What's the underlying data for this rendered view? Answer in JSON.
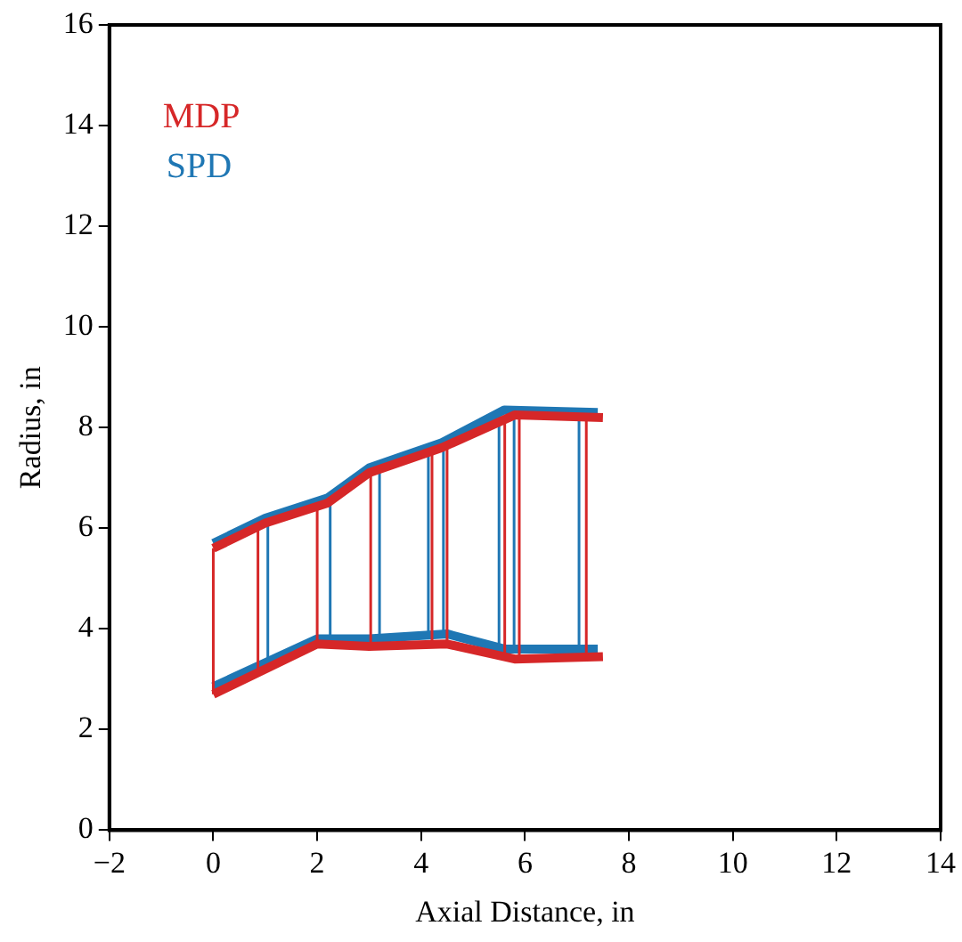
{
  "chart_data": {
    "type": "line",
    "xlabel": "Axial Distance, in",
    "ylabel": "Radius, in",
    "xlim": [
      -2,
      14
    ],
    "xticks": [
      -2,
      0,
      2,
      4,
      6,
      8,
      10,
      12,
      14
    ],
    "ylim": [
      0,
      16
    ],
    "yticks": [
      0,
      2,
      4,
      6,
      8,
      10,
      12,
      14,
      16
    ],
    "grid": false,
    "legend": "top left",
    "marker": "none",
    "line_style": "solid",
    "series": [
      {
        "name": "MDP",
        "color": "#d62728",
        "x": [
          0,
          1,
          2.2,
          3,
          4.4,
          5.8,
          7.5
        ],
        "values": [
          5.6,
          6.1,
          6.5,
          7.1,
          7.6,
          8.25,
          8.2
        ]
      },
      {
        "color": "#d62728",
        "x": [
          0,
          2,
          3,
          4.5,
          5.8,
          7.5
        ],
        "values": [
          2.7,
          3.7,
          3.65,
          3.7,
          3.4,
          3.45
        ]
      },
      {
        "color": "#d62728",
        "x": [
          0,
          0
        ],
        "values": [
          2.7,
          5.6
        ]
      },
      {
        "color": "#d62728",
        "x": [
          0.86,
          0.86
        ],
        "values": [
          3.13,
          6.03
        ]
      },
      {
        "color": "#d62728",
        "x": [
          2,
          2
        ],
        "values": [
          3.7,
          6.43
        ]
      },
      {
        "color": "#d62728",
        "x": [
          3.03,
          3.03
        ],
        "values": [
          3.65,
          7.1
        ]
      },
      {
        "color": "#d62728",
        "x": [
          4.21,
          4.21
        ],
        "values": [
          3.69,
          7.53
        ]
      },
      {
        "color": "#d62728",
        "x": [
          4.5,
          4.5
        ],
        "values": [
          3.7,
          7.64
        ]
      },
      {
        "color": "#d62728",
        "x": [
          5.61,
          5.61
        ],
        "values": [
          3.44,
          8.16
        ]
      },
      {
        "color": "#d62728",
        "x": [
          5.89,
          5.89
        ],
        "values": [
          3.4,
          8.25
        ]
      },
      {
        "color": "#d62728",
        "x": [
          7.18,
          7.18
        ],
        "values": [
          3.44,
          8.21
        ]
      },
      {
        "name": "SPD",
        "color": "#1f77b4",
        "x": [
          0,
          1,
          2.2,
          3,
          4.4,
          5.6,
          7.4
        ],
        "values": [
          5.7,
          6.2,
          6.6,
          7.2,
          7.7,
          8.35,
          8.3
        ]
      },
      {
        "color": "#1f77b4",
        "x": [
          0,
          2,
          3,
          4.5,
          5.6,
          7.4
        ],
        "values": [
          2.85,
          3.8,
          3.8,
          3.9,
          3.6,
          3.6
        ]
      },
      {
        "color": "#1f77b4",
        "x": [
          1.05,
          1.05
        ],
        "values": [
          3.35,
          6.22
        ]
      },
      {
        "color": "#1f77b4",
        "x": [
          2.25,
          2.25
        ],
        "values": [
          3.8,
          6.64
        ]
      },
      {
        "color": "#1f77b4",
        "x": [
          3.2,
          3.2
        ],
        "values": [
          3.81,
          7.27
        ]
      },
      {
        "color": "#1f77b4",
        "x": [
          4.14,
          4.14
        ],
        "values": [
          3.88,
          7.61
        ]
      },
      {
        "color": "#1f77b4",
        "x": [
          4.43,
          4.43
        ],
        "values": [
          3.9,
          7.71
        ]
      },
      {
        "color": "#1f77b4",
        "x": [
          5.5,
          5.5
        ],
        "values": [
          3.63,
          8.3
        ]
      },
      {
        "color": "#1f77b4",
        "x": [
          5.79,
          5.79
        ],
        "values": [
          3.6,
          8.35
        ]
      },
      {
        "color": "#1f77b4",
        "x": [
          7.04,
          7.04
        ],
        "values": [
          3.6,
          8.31
        ]
      }
    ]
  }
}
